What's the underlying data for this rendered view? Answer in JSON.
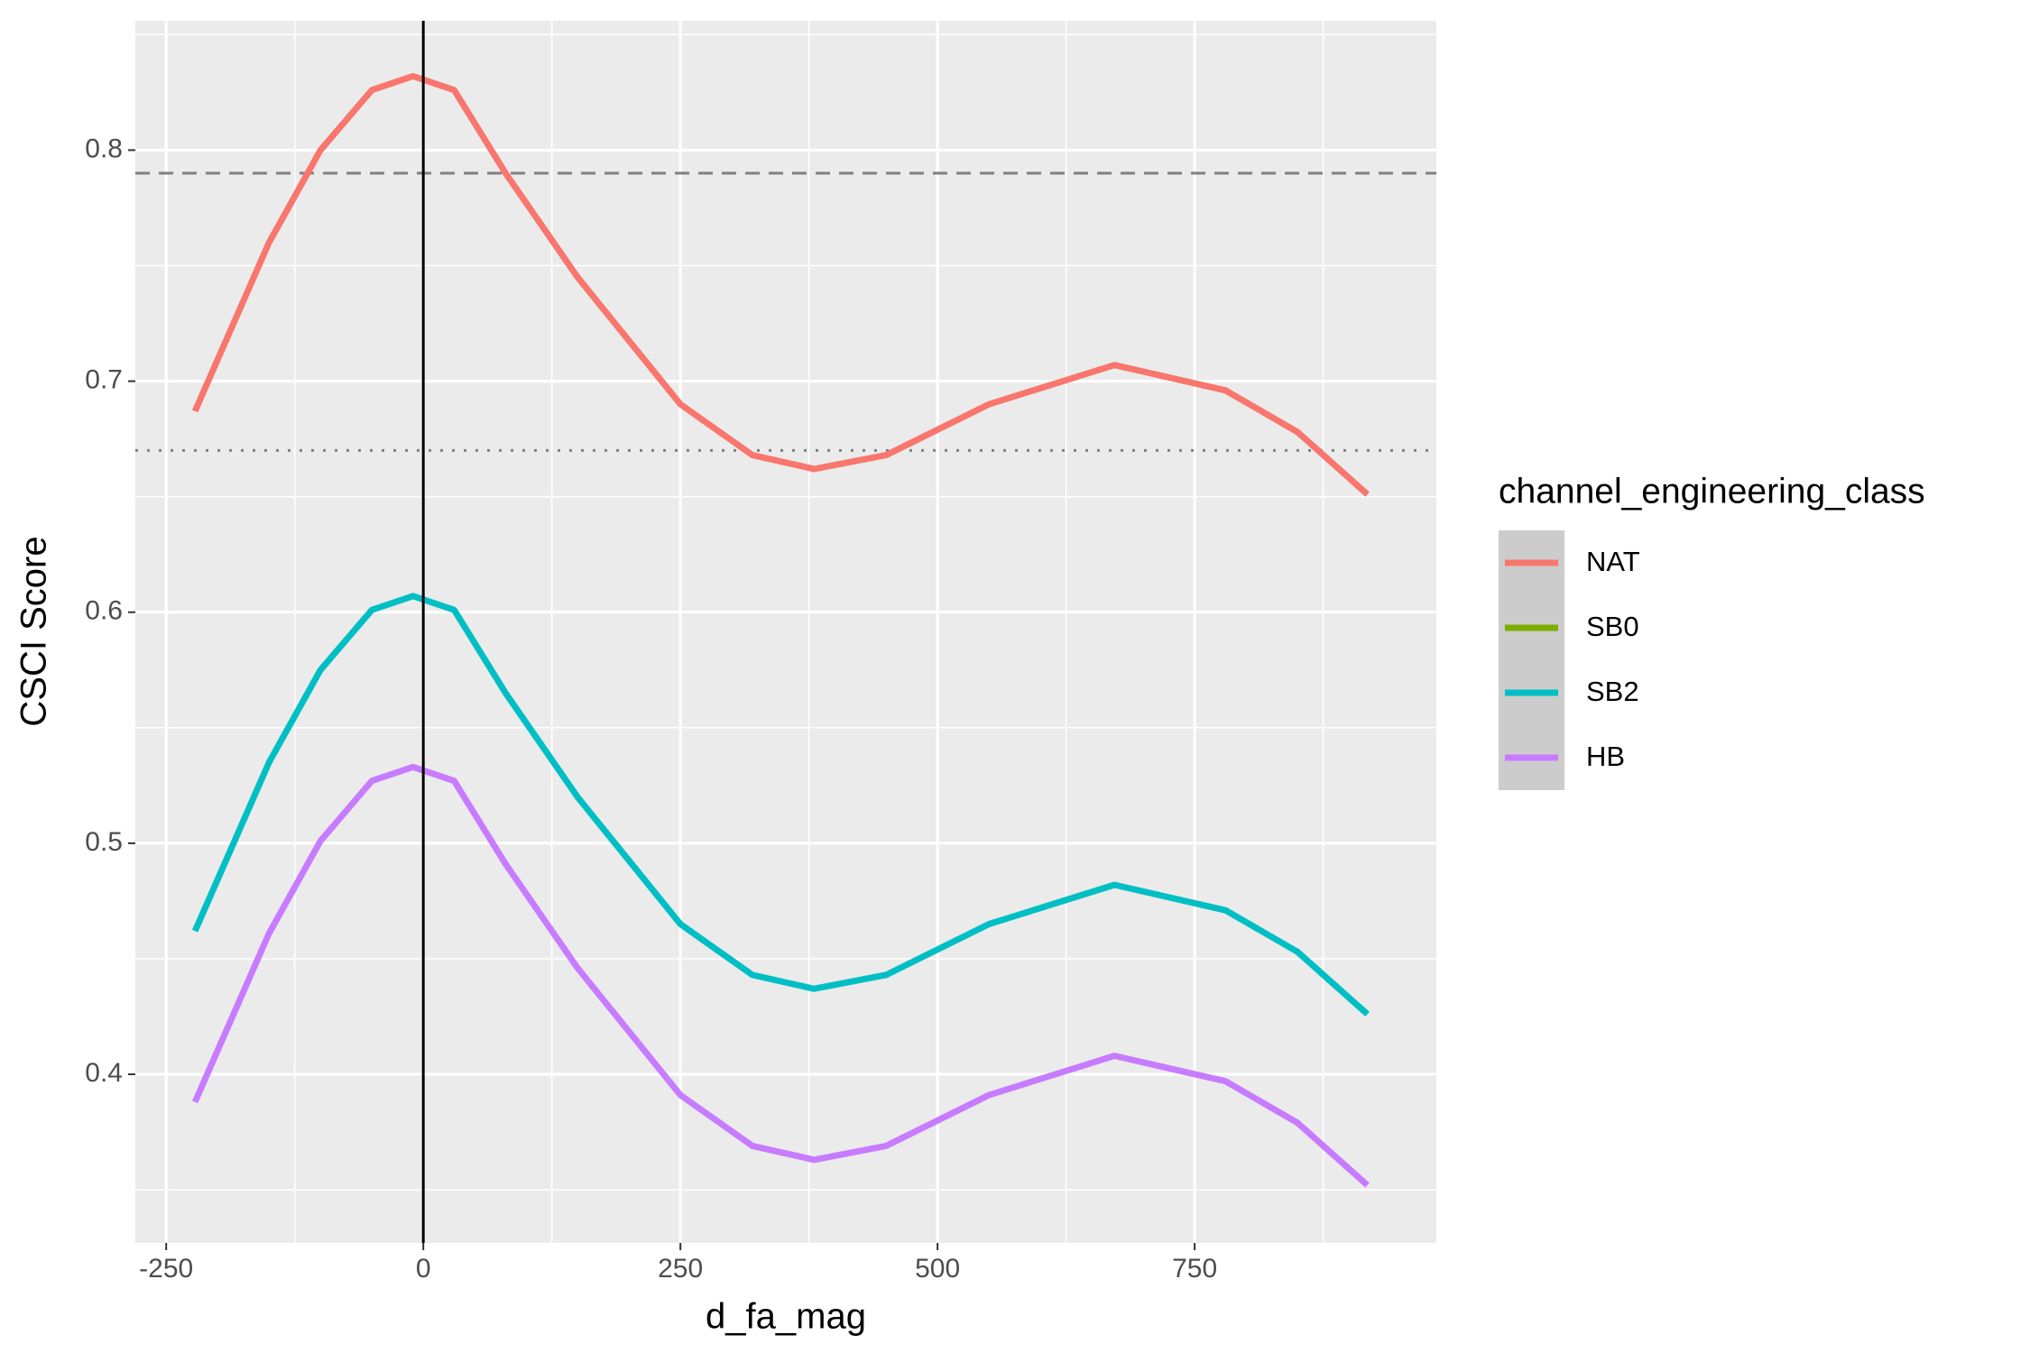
{
  "chart_data": {
    "type": "line",
    "x_label": "d_fa_mag",
    "y_label": "CSCI Score",
    "legend_title": "channel_engineering_class",
    "x": [
      -222,
      -150,
      -100,
      -50,
      -10,
      30,
      80,
      150,
      250,
      320,
      380,
      450,
      550,
      672,
      780,
      850,
      918
    ],
    "series": [
      {
        "name": "NAT",
        "color": "#F8766D",
        "values": [
          0.687,
          0.76,
          0.8,
          0.826,
          0.832,
          0.826,
          0.79,
          0.745,
          0.69,
          0.668,
          0.662,
          0.668,
          0.69,
          0.707,
          0.696,
          0.678,
          0.651
        ]
      },
      {
        "name": "SB0",
        "color": "#7CAE00",
        "values": [
          null,
          null,
          null,
          null,
          null,
          null,
          null,
          null,
          null,
          null,
          null,
          null,
          null,
          null,
          null,
          null,
          null
        ]
      },
      {
        "name": "SB2",
        "color": "#00BFC4",
        "values": [
          0.462,
          0.535,
          0.575,
          0.601,
          0.607,
          0.601,
          0.565,
          0.52,
          0.465,
          0.443,
          0.437,
          0.443,
          0.465,
          0.482,
          0.471,
          0.453,
          0.426
        ]
      },
      {
        "name": "HB",
        "color": "#C77CFF",
        "values": [
          0.388,
          0.461,
          0.501,
          0.527,
          0.533,
          0.527,
          0.491,
          0.446,
          0.391,
          0.369,
          0.363,
          0.369,
          0.391,
          0.408,
          0.397,
          0.379,
          0.352
        ]
      }
    ],
    "xlim": [
      -280,
      985
    ],
    "xticks": [
      -250,
      0,
      250,
      500,
      750
    ],
    "ylim": [
      0.327,
      0.856
    ],
    "yticks": [
      0.4,
      0.5,
      0.6,
      0.7,
      0.8
    ],
    "hlines": [
      {
        "value": 0.79,
        "style": "dashed"
      },
      {
        "value": 0.67,
        "style": "dotted"
      }
    ],
    "vline": 0,
    "grid": true
  }
}
